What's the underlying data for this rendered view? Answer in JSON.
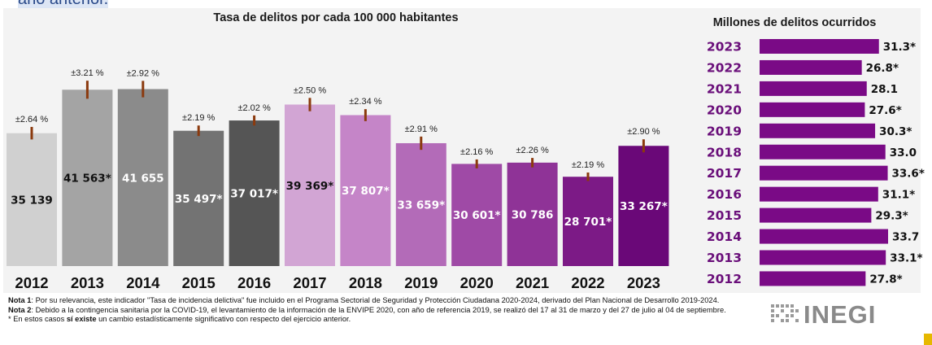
{
  "top_clipped_text": "año anterior.",
  "chart_data": [
    {
      "type": "bar",
      "title": "Tasa de delitos por cada 100 000 habitantes",
      "categories": [
        "2012",
        "2013",
        "2014",
        "2015",
        "2016",
        "2017",
        "2018",
        "2019",
        "2020",
        "2021",
        "2022",
        "2023"
      ],
      "values": [
        35139,
        41563,
        41655,
        35497,
        37017,
        39369,
        37807,
        33659,
        30601,
        30786,
        28701,
        33267
      ],
      "value_labels": [
        "35 139",
        "41 563*",
        "41 655",
        "35 497*",
        "37 017*",
        "39 369*",
        "37 807*",
        "33 659*",
        "30 601*",
        "30 786",
        "28 701*",
        "33 267*"
      ],
      "error_labels": [
        "±2.64 %",
        "±3.21 %",
        "±2.92 %",
        "±2.19 %",
        "±2.02 %",
        "±2.50 %",
        "±2.34 %",
        "±2.91 %",
        "±2.16 %",
        "±2.26 %",
        "±2.19 %",
        "±2.90 %"
      ],
      "error_pct": [
        2.64,
        3.21,
        2.92,
        2.19,
        2.02,
        2.5,
        2.34,
        2.91,
        2.16,
        2.26,
        2.19,
        2.9
      ],
      "colors": [
        "#d0d0d0",
        "#a4a4a4",
        "#8b8b8b",
        "#737373",
        "#555555",
        "#d2a5d4",
        "#c585c8",
        "#b36bb8",
        "#9f4aa6",
        "#8f3397",
        "#7c1a86",
        "#6a0878"
      ],
      "label_colors": [
        "#111111",
        "#111111",
        "#ffffff",
        "#ffffff",
        "#ffffff",
        "#111111",
        "#ffffff",
        "#ffffff",
        "#ffffff",
        "#ffffff",
        "#ffffff",
        "#ffffff"
      ],
      "error_bar_color": "#8b3a0e",
      "ylim": [
        15500,
        44000
      ]
    },
    {
      "type": "bar",
      "orientation": "horizontal",
      "title": "Millones de delitos ocurridos",
      "categories": [
        "2023",
        "2022",
        "2021",
        "2020",
        "2019",
        "2018",
        "2017",
        "2016",
        "2015",
        "2014",
        "2013",
        "2012"
      ],
      "values": [
        31.3,
        26.8,
        28.1,
        27.6,
        30.3,
        33.0,
        33.6,
        31.1,
        29.3,
        33.7,
        33.1,
        27.8
      ],
      "value_labels": [
        "31.3*",
        "26.8*",
        "28.1",
        "27.6*",
        "30.3*",
        "33.0",
        "33.6*",
        "31.1*",
        "29.3*",
        "33.7",
        "33.1*",
        "27.8*"
      ],
      "bar_color": "#7a0a86",
      "year_color": "#6a0f7a",
      "xlim": [
        0,
        33.7
      ]
    }
  ],
  "notes": [
    {
      "label": "Nota 1",
      "text": ": Por su relevancia, este indicador \"Tasa de incidencia delictiva\" fue incluido en el Programa Sectorial de Seguridad y Protección Ciudadana 2020-2024, derivado del Plan Nacional de Desarrollo 2019-2024."
    },
    {
      "label": "Nota 2",
      "text": ": Debido a la contingencia sanitaria por la COVID-19, el levantamiento de la información de la ENVIPE 2020, con año de referencia 2019, se realizó del 17 al 31 de marzo y del 27 de julio al 04 de septiembre."
    }
  ],
  "footnote": {
    "prefix": "* En estos casos ",
    "bold": "sí existe",
    "suffix": " un cambio estadísticamente significativo con respecto del ejercicio anterior."
  },
  "logo": {
    "text": "INEGI"
  }
}
